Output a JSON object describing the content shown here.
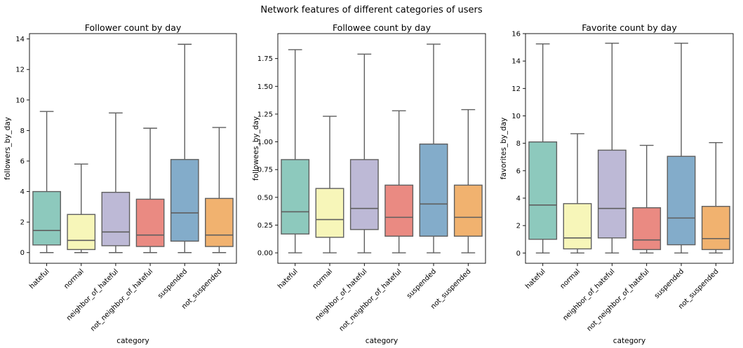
{
  "figure": {
    "suptitle": "Network features of different categories of users"
  },
  "chart_data": [
    {
      "type": "box",
      "title": "Follower count by day",
      "xlabel": "category",
      "ylabel": "followers_by_day",
      "categories": [
        "hateful",
        "normal",
        "neighbor_of_hateful",
        "not_neighbor_of_hateful",
        "suspended",
        "not_suspended"
      ],
      "boxes": [
        {
          "whislo": 0.0,
          "q1": 0.5,
          "med": 1.45,
          "q3": 4.0,
          "whishi": 9.25
        },
        {
          "whislo": 0.0,
          "q1": 0.2,
          "med": 0.8,
          "q3": 2.5,
          "whishi": 5.8
        },
        {
          "whislo": 0.0,
          "q1": 0.45,
          "med": 1.35,
          "q3": 3.95,
          "whishi": 9.15
        },
        {
          "whislo": 0.0,
          "q1": 0.4,
          "med": 1.15,
          "q3": 3.5,
          "whishi": 8.15
        },
        {
          "whislo": 0.0,
          "q1": 0.75,
          "med": 2.6,
          "q3": 6.1,
          "whishi": 13.65
        },
        {
          "whislo": 0.0,
          "q1": 0.4,
          "med": 1.15,
          "q3": 3.55,
          "whishi": 8.2
        }
      ],
      "ylim": [
        -0.7,
        14.35
      ],
      "yticks": [
        0,
        2,
        4,
        6,
        8,
        10,
        12,
        14
      ],
      "yticklabels": [
        "0",
        "2",
        "4",
        "6",
        "8",
        "10",
        "12",
        "14"
      ],
      "grid": false
    },
    {
      "type": "box",
      "title": "Followee count by day",
      "xlabel": "category",
      "ylabel": "followees_by_day",
      "categories": [
        "hateful",
        "normal",
        "neighbor_of_hateful",
        "not_neighbor_of_hateful",
        "suspended",
        "not_suspended"
      ],
      "boxes": [
        {
          "whislo": 0.0,
          "q1": 0.17,
          "med": 0.37,
          "q3": 0.84,
          "whishi": 1.83
        },
        {
          "whislo": 0.0,
          "q1": 0.14,
          "med": 0.3,
          "q3": 0.58,
          "whishi": 1.23
        },
        {
          "whislo": 0.0,
          "q1": 0.21,
          "med": 0.4,
          "q3": 0.84,
          "whishi": 1.79
        },
        {
          "whislo": 0.0,
          "q1": 0.15,
          "med": 0.32,
          "q3": 0.61,
          "whishi": 1.28
        },
        {
          "whislo": 0.0,
          "q1": 0.15,
          "med": 0.44,
          "q3": 0.98,
          "whishi": 1.88
        },
        {
          "whislo": 0.0,
          "q1": 0.15,
          "med": 0.32,
          "q3": 0.61,
          "whishi": 1.29
        }
      ],
      "ylim": [
        -0.094,
        1.975
      ],
      "yticks": [
        0.0,
        0.25,
        0.5,
        0.75,
        1.0,
        1.25,
        1.5,
        1.75
      ],
      "yticklabels": [
        "0.00",
        "0.25",
        "0.50",
        "0.75",
        "1.00",
        "1.25",
        "1.50",
        "1.75"
      ],
      "grid": false
    },
    {
      "type": "box",
      "title": "Favorite count by day",
      "xlabel": "category",
      "ylabel": "favorites_by_day",
      "categories": [
        "hateful",
        "normal",
        "neighbor_of_hateful",
        "not_neighbor_of_hateful",
        "suspended",
        "not_suspended"
      ],
      "boxes": [
        {
          "whislo": 0.0,
          "q1": 1.0,
          "med": 3.5,
          "q3": 8.1,
          "whishi": 15.25
        },
        {
          "whislo": 0.0,
          "q1": 0.3,
          "med": 1.1,
          "q3": 3.6,
          "whishi": 8.7
        },
        {
          "whislo": 0.0,
          "q1": 1.1,
          "med": 3.25,
          "q3": 7.5,
          "whishi": 15.3
        },
        {
          "whislo": 0.0,
          "q1": 0.25,
          "med": 0.95,
          "q3": 3.3,
          "whishi": 7.85
        },
        {
          "whislo": 0.0,
          "q1": 0.6,
          "med": 2.55,
          "q3": 7.05,
          "whishi": 15.3
        },
        {
          "whislo": 0.0,
          "q1": 0.25,
          "med": 1.05,
          "q3": 3.4,
          "whishi": 8.05
        }
      ],
      "ylim": [
        -0.75,
        16.0
      ],
      "yticks": [
        0,
        2,
        4,
        6,
        8,
        10,
        12,
        14,
        16
      ],
      "yticklabels": [
        "0",
        "2",
        "4",
        "6",
        "8",
        "10",
        "12",
        "14",
        "16"
      ],
      "grid": false
    }
  ],
  "colors": {
    "palette": [
      "#8dc9bd",
      "#f7f6b9",
      "#bdb9d6",
      "#ea8a82",
      "#83acca",
      "#f1b26f"
    ],
    "line": "#5f5f5f",
    "axis": "#000000"
  }
}
